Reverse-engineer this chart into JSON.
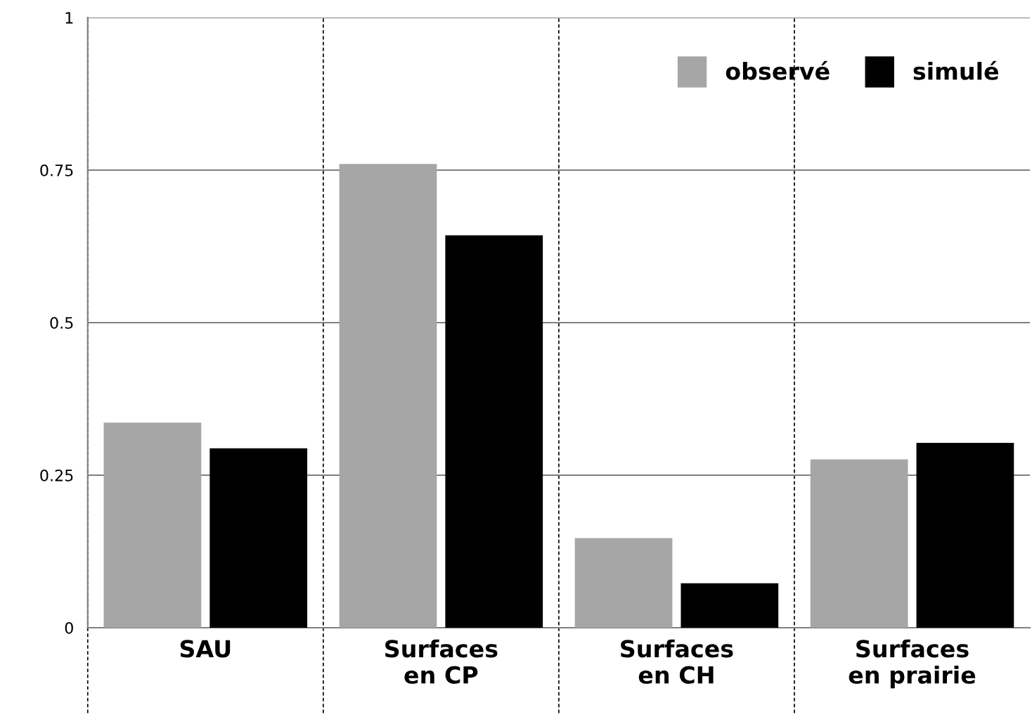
{
  "chart_data": {
    "type": "bar",
    "categories": [
      "SAU",
      "Surfaces\nen CP",
      "Surfaces\nen CH",
      "Surfaces\nen prairie"
    ],
    "series": [
      {
        "name": "observé",
        "color": "#a6a6a6",
        "values": [
          0.336,
          0.76,
          0.147,
          0.276
        ]
      },
      {
        "name": "simulé",
        "color": "#000000",
        "values": [
          0.294,
          0.643,
          0.073,
          0.303
        ]
      }
    ],
    "ylim": [
      0,
      1
    ],
    "yticks": [
      0,
      0.25,
      0.5,
      0.75,
      1
    ],
    "grid": true,
    "legend": "top right"
  }
}
